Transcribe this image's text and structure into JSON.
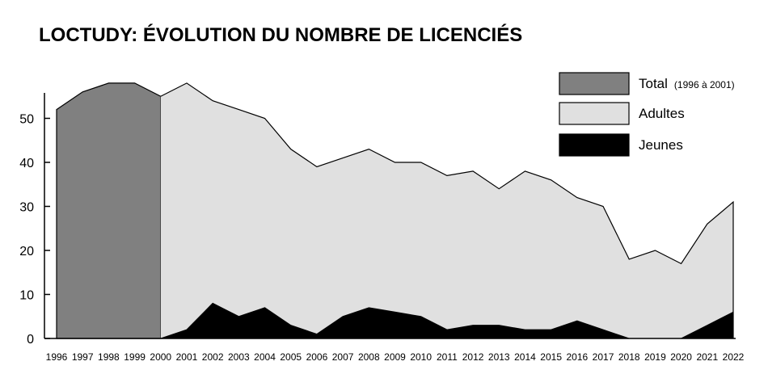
{
  "chart_data": {
    "type": "area",
    "title": "LOCTUDY: ÉVOLUTION DU NOMBRE DE LICENCIÉS",
    "xlabel": "",
    "ylabel": "",
    "ylim": [
      0,
      60
    ],
    "yticks": [
      0,
      10,
      20,
      30,
      40,
      50
    ],
    "x": [
      "1996",
      "1997",
      "1998",
      "1999",
      "2000",
      "2001",
      "2002",
      "2003",
      "2004",
      "2005",
      "2006",
      "2007",
      "2008",
      "2009",
      "2010",
      "2011",
      "2012",
      "2013",
      "2014",
      "2015",
      "2016",
      "2017",
      "2018",
      "2019",
      "2020",
      "2021",
      "2022"
    ],
    "series": [
      {
        "name": "Total",
        "note": "(1996 à 2001)",
        "color": "#808080",
        "x": [
          "1996",
          "1997",
          "1998",
          "1999",
          "2000"
        ],
        "values": [
          52,
          56,
          58,
          58,
          55
        ]
      },
      {
        "name": "Adultes",
        "color": "#e0e0e0",
        "x": [
          "2000",
          "2001",
          "2002",
          "2003",
          "2004",
          "2005",
          "2006",
          "2007",
          "2008",
          "2009",
          "2010",
          "2011",
          "2012",
          "2013",
          "2014",
          "2015",
          "2016",
          "2017",
          "2018",
          "2019",
          "2020",
          "2021",
          "2022"
        ],
        "values": [
          55,
          58,
          54,
          52,
          50,
          43,
          39,
          41,
          43,
          40,
          40,
          37,
          38,
          34,
          38,
          36,
          32,
          30,
          18,
          20,
          17,
          26,
          31
        ]
      },
      {
        "name": "Jeunes",
        "color": "#000000",
        "x": [
          "2000",
          "2001",
          "2002",
          "2003",
          "2004",
          "2005",
          "2006",
          "2007",
          "2008",
          "2009",
          "2010",
          "2011",
          "2012",
          "2013",
          "2014",
          "2015",
          "2016",
          "2017",
          "2018",
          "2019",
          "2020",
          "2021",
          "2022"
        ],
        "values": [
          0,
          2,
          8,
          5,
          7,
          3,
          1,
          5,
          7,
          6,
          5,
          2,
          3,
          3,
          2,
          2,
          4,
          2,
          0,
          0,
          0,
          3,
          6
        ]
      }
    ],
    "legend_position": "top-right",
    "grid": false
  }
}
